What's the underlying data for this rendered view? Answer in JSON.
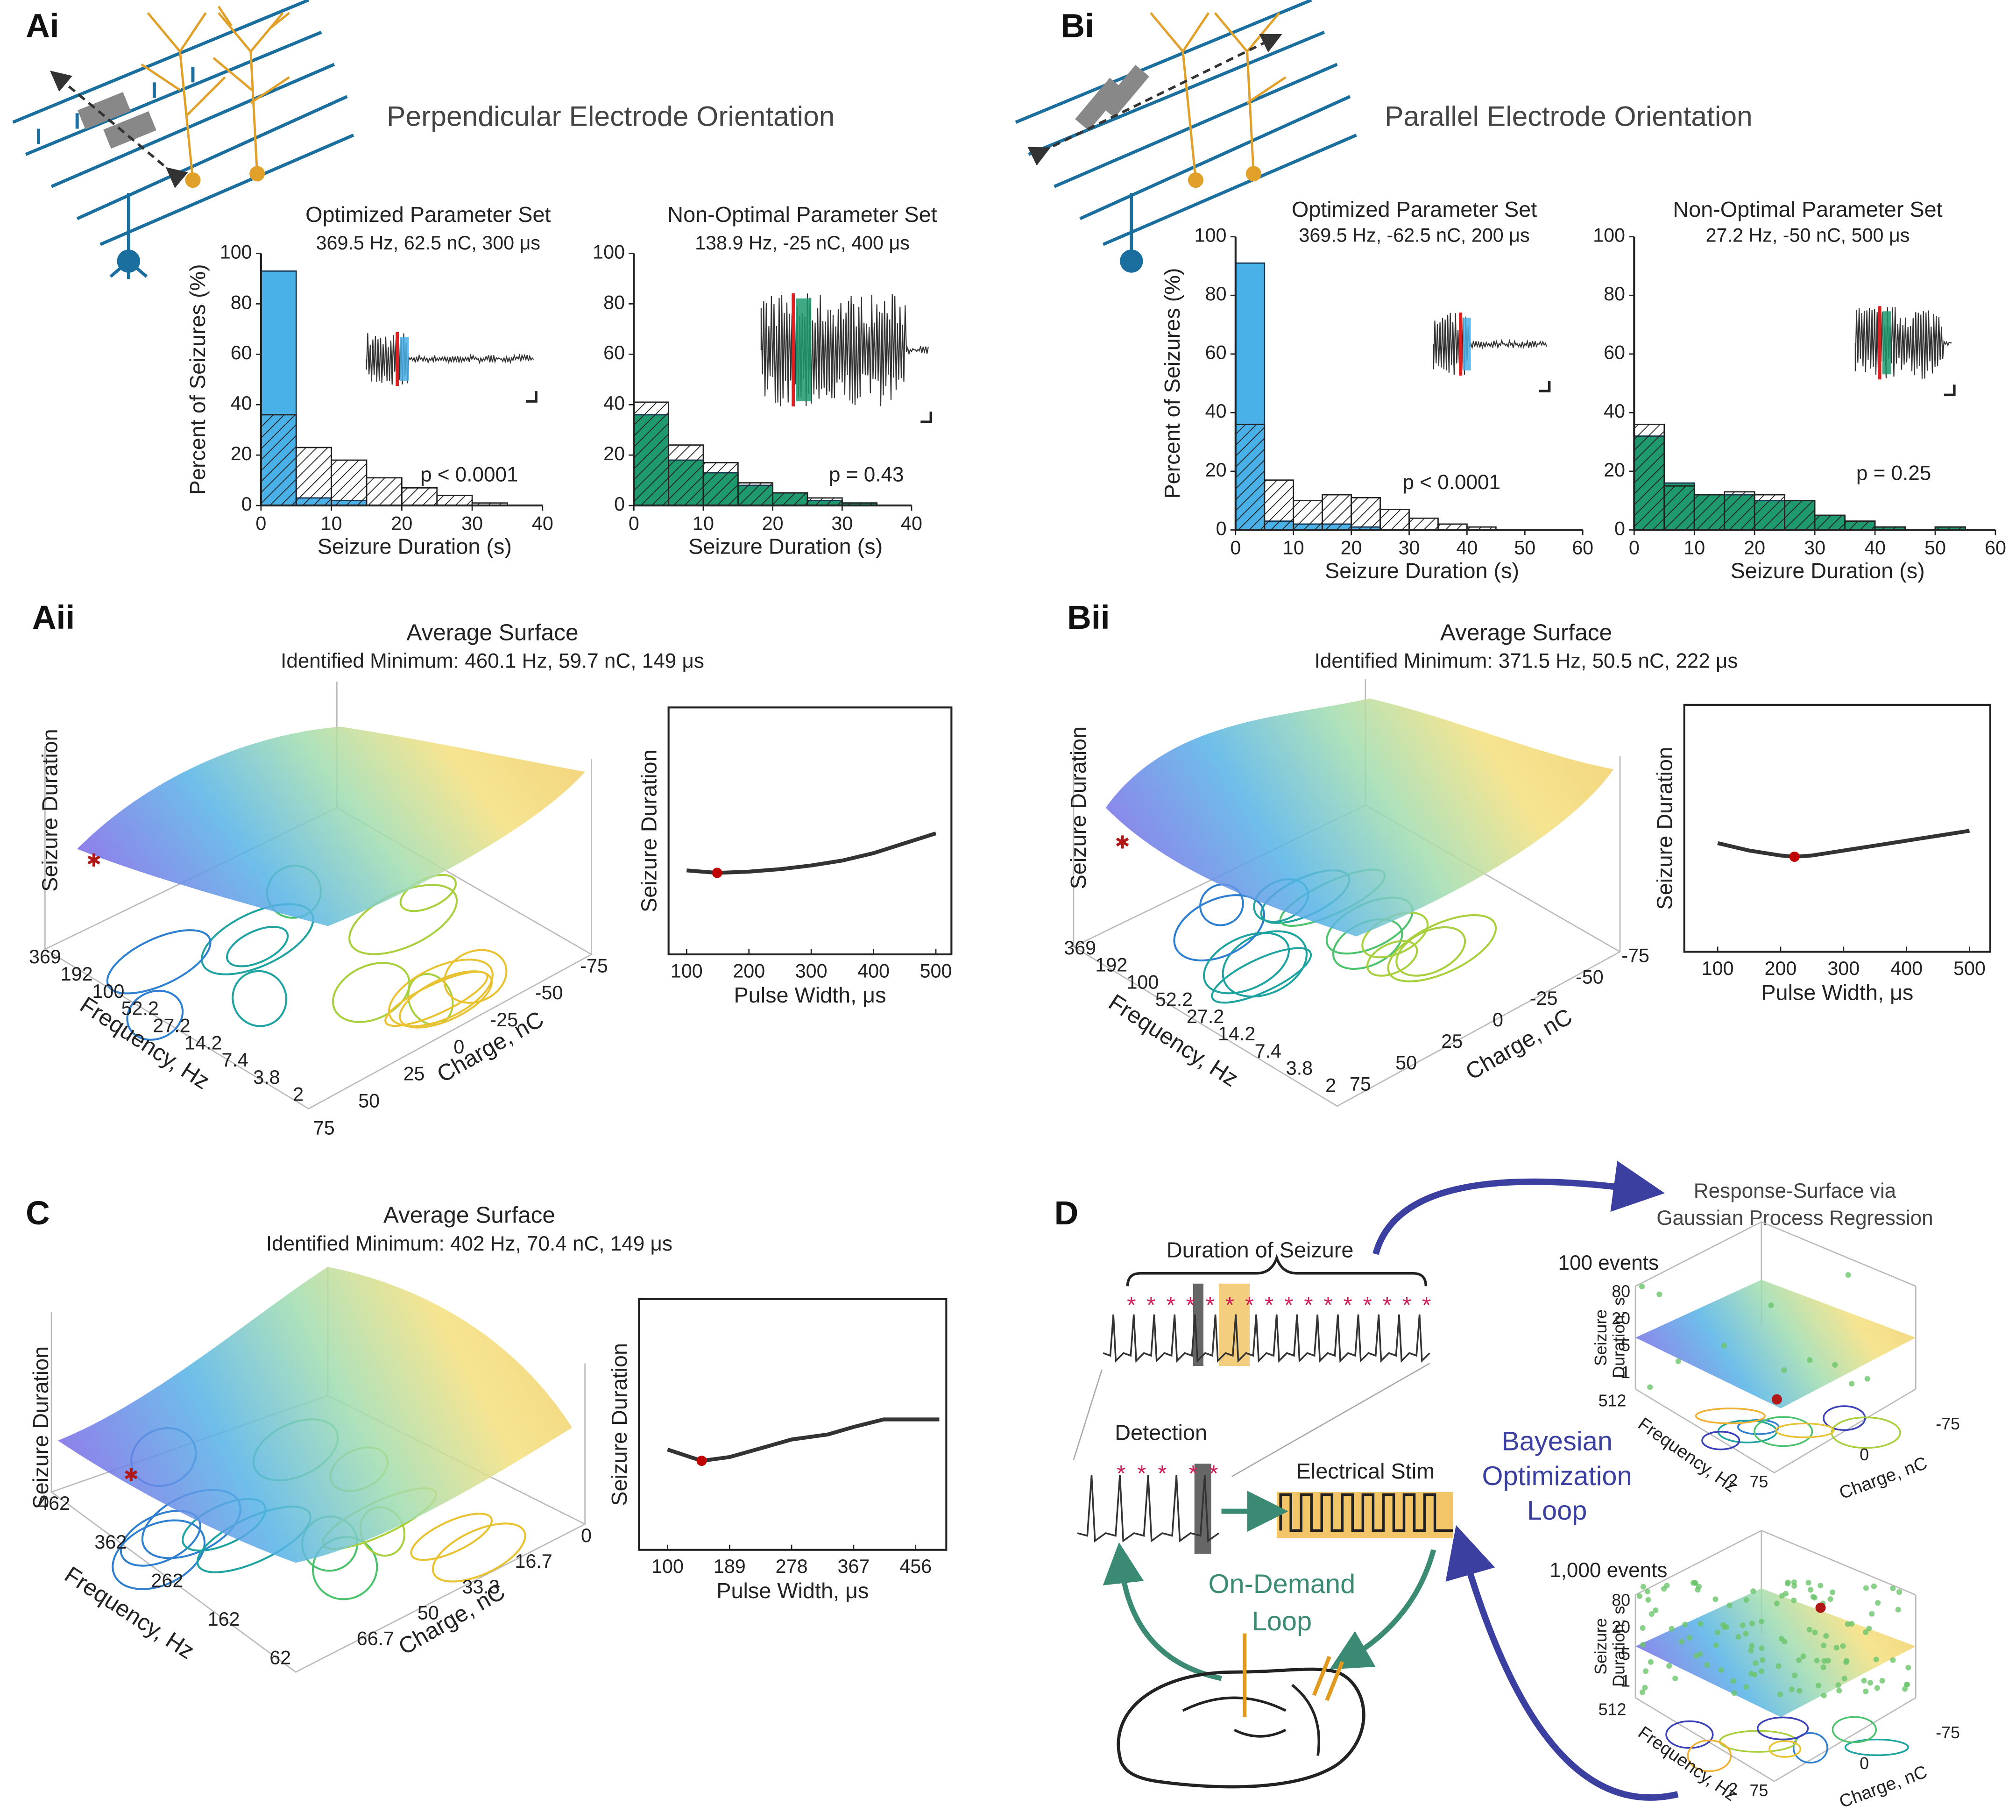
{
  "panel_labels": [
    "Ai",
    "Bi",
    "Aii",
    "Bii",
    "C",
    "D"
  ],
  "headers": [
    "Perpendicular Electrode Orientation",
    "Parallel Electrode Orientation"
  ],
  "chart_data": [
    {
      "type": "histogram",
      "title": "Optimized Parameter Set",
      "subtitle": "369.5 Hz, 62.5 nC, 300 μs",
      "xlabel": "Seizure Duration (s)",
      "ylabel": "Percent of Seizures (%)",
      "bins": [
        0,
        5,
        10,
        15,
        20,
        25,
        30,
        35,
        40
      ],
      "values": [
        93,
        3,
        2,
        0,
        0,
        0,
        0,
        0
      ],
      "baseline_values": [
        36,
        23,
        18,
        11,
        7,
        4,
        1,
        0
      ],
      "color": "#4ab0e8",
      "xlim": [
        0,
        40
      ],
      "xticks": [
        0,
        10,
        20,
        30,
        40
      ],
      "ylim": [
        0,
        100
      ],
      "yticks": [
        0,
        20,
        40,
        60,
        80,
        100
      ],
      "annotation": "p < 0.0001"
    },
    {
      "type": "histogram",
      "title": "Non-Optimal Parameter Set",
      "subtitle": "138.9 Hz, -25 nC, 400 μs",
      "xlabel": "Seizure Duration (s)",
      "bins": [
        0,
        5,
        10,
        15,
        20,
        25,
        30,
        35,
        40
      ],
      "values": [
        36,
        18,
        13,
        8,
        5,
        2,
        1,
        0
      ],
      "baseline_values": [
        41,
        24,
        17,
        9,
        5,
        3,
        1,
        0
      ],
      "color": "#1f9a6e",
      "xlim": [
        0,
        40
      ],
      "xticks": [
        0,
        10,
        20,
        30,
        40
      ],
      "ylim": [
        0,
        100
      ],
      "yticks": [
        0,
        20,
        40,
        60,
        80,
        100
      ],
      "annotation": "p = 0.43"
    },
    {
      "type": "histogram",
      "title": "Optimized Parameter Set",
      "subtitle": "369.5 Hz, -62.5 nC, 200 μs",
      "xlabel": "Seizure Duration (s)",
      "ylabel": "Percent of Seizures (%)",
      "bins": [
        0,
        5,
        10,
        15,
        20,
        25,
        30,
        35,
        40,
        45,
        50,
        55,
        60
      ],
      "values": [
        91,
        3,
        2,
        2,
        1,
        0,
        0,
        0,
        0,
        0,
        0,
        0
      ],
      "baseline_values": [
        36,
        17,
        10,
        12,
        11,
        7,
        4,
        2,
        1,
        0,
        0,
        0
      ],
      "color": "#4ab0e8",
      "xlim": [
        0,
        60
      ],
      "xticks": [
        0,
        10,
        20,
        30,
        40,
        50,
        60
      ],
      "ylim": [
        0,
        100
      ],
      "yticks": [
        0,
        20,
        40,
        60,
        80,
        100
      ],
      "annotation": "p < 0.0001"
    },
    {
      "type": "histogram",
      "title": "Non-Optimal Parameter Set",
      "subtitle": "27.2 Hz, -50 nC, 500 μs",
      "xlabel": "Seizure Duration (s)",
      "bins": [
        0,
        5,
        10,
        15,
        20,
        25,
        30,
        35,
        40,
        45,
        50,
        55,
        60
      ],
      "values": [
        32,
        16,
        12,
        12,
        10,
        10,
        5,
        3,
        1,
        0,
        1,
        0
      ],
      "baseline_values": [
        36,
        15,
        12,
        13,
        12,
        10,
        5,
        3,
        1,
        0,
        1,
        0
      ],
      "color": "#1f9a6e",
      "xlim": [
        0,
        60
      ],
      "xticks": [
        0,
        10,
        20,
        30,
        40,
        50,
        60
      ],
      "ylim": [
        0,
        100
      ],
      "yticks": [
        0,
        20,
        40,
        60,
        80,
        100
      ],
      "annotation": "p = 0.25"
    },
    {
      "type": "surface",
      "title": "Average Surface",
      "subtitle": "Identified Minimum: 460.1 Hz, 59.7 nC, 149 μs",
      "zlabel": "Seizure Duration",
      "xlabel": "Frequency, Hz",
      "xticks": [
        369,
        192,
        100,
        52.2,
        27.2,
        14.2,
        7.4,
        3.8,
        2
      ],
      "ylabel": "Charge, nC",
      "yticks": [
        75,
        50,
        25,
        0,
        -25,
        -50,
        -75
      ]
    },
    {
      "type": "line",
      "ylabel": "Seizure Duration",
      "xlabel": "Pulse Width, μs",
      "x": [
        100,
        150,
        200,
        250,
        300,
        350,
        400,
        450,
        500
      ],
      "values": [
        0.34,
        0.33,
        0.335,
        0.345,
        0.36,
        0.38,
        0.41,
        0.45,
        0.49
      ],
      "color": "#333333",
      "minimum": {
        "x": 149,
        "value": 0.33
      },
      "marker_color": "#c00000",
      "xlim": [
        71,
        525
      ],
      "xticks": [
        100,
        200,
        300,
        400,
        500
      ],
      "ylim": [
        0,
        1
      ]
    },
    {
      "type": "surface",
      "title": "Average Surface",
      "subtitle": "Identified Minimum: 371.5 Hz, 50.5 nC, 222 μs",
      "zlabel": "Seizure Duration",
      "xlabel": "Frequency, Hz",
      "xticks": [
        369,
        192,
        100,
        52.2,
        27.2,
        14.2,
        7.4,
        3.8,
        2
      ],
      "ylabel": "Charge, nC",
      "yticks": [
        75,
        50,
        25,
        0,
        -25,
        -50,
        -75
      ]
    },
    {
      "type": "line",
      "ylabel": "Seizure Duration",
      "xlabel": "Pulse Width, μs",
      "x": [
        100,
        150,
        200,
        222,
        250,
        300,
        350,
        400,
        450,
        500
      ],
      "values": [
        0.44,
        0.41,
        0.39,
        0.385,
        0.39,
        0.41,
        0.43,
        0.45,
        0.47,
        0.49
      ],
      "color": "#333333",
      "minimum": {
        "x": 222,
        "value": 0.385
      },
      "marker_color": "#c00000",
      "xlim": [
        47,
        533
      ],
      "xticks": [
        100,
        200,
        300,
        400,
        500
      ],
      "ylim": [
        0,
        1
      ]
    },
    {
      "type": "surface",
      "title": "Average Surface",
      "subtitle": "Identified Minimum: 402 Hz, 70.4 nC, 149 μs",
      "zlabel": "Seizure Duration",
      "xlabel": "Frequency, Hz",
      "xticks": [
        462,
        362,
        262,
        162,
        62
      ],
      "ylabel": "Charge, nC",
      "yticks": [
        66.7,
        50,
        33.3,
        16.7,
        0
      ]
    },
    {
      "type": "line",
      "ylabel": "Seizure Duration",
      "xlabel": "Pulse Width, μs",
      "x": [
        100,
        149,
        189,
        240,
        278,
        330,
        367,
        410,
        456,
        490
      ],
      "values": [
        0.4,
        0.355,
        0.37,
        0.41,
        0.44,
        0.46,
        0.49,
        0.52,
        0.52,
        0.52
      ],
      "color": "#333333",
      "minimum": {
        "x": 149,
        "value": 0.355
      },
      "marker_color": "#c00000",
      "xlim": [
        59,
        500
      ],
      "xticks": [
        100,
        189,
        278,
        367,
        456
      ],
      "ylim": [
        0,
        1
      ]
    }
  ],
  "diagram": {
    "brace_label": "Duration of Seizure",
    "detection": "Detection",
    "stim": "Electrical Stim",
    "on_demand": [
      "On-Demand",
      "Loop"
    ],
    "bayesian": [
      "Bayesian",
      "Optimization",
      "Loop"
    ],
    "gpr": [
      "Response-Surface via",
      "Gaussian Process Regression"
    ],
    "insets": [
      {
        "label": "100 events",
        "zlabel": [
          "Seizure",
          "Duration, s"
        ],
        "zticks": [
          1,
          5,
          20,
          80
        ],
        "xlabel": "Frequency, Hz",
        "xticks": [
          512,
          2
        ],
        "ylabel": "Charge, nC",
        "yticks": [
          75,
          0,
          -75
        ]
      },
      {
        "label": "1,000 events",
        "zlabel": [
          "Seizure",
          "Duration, s"
        ],
        "zticks": [
          1,
          5,
          20,
          80
        ],
        "xlabel": "Frequency, Hz",
        "xticks": [
          512,
          2
        ],
        "ylabel": "Charge, nC",
        "yticks": [
          75,
          0,
          -75
        ]
      }
    ]
  }
}
